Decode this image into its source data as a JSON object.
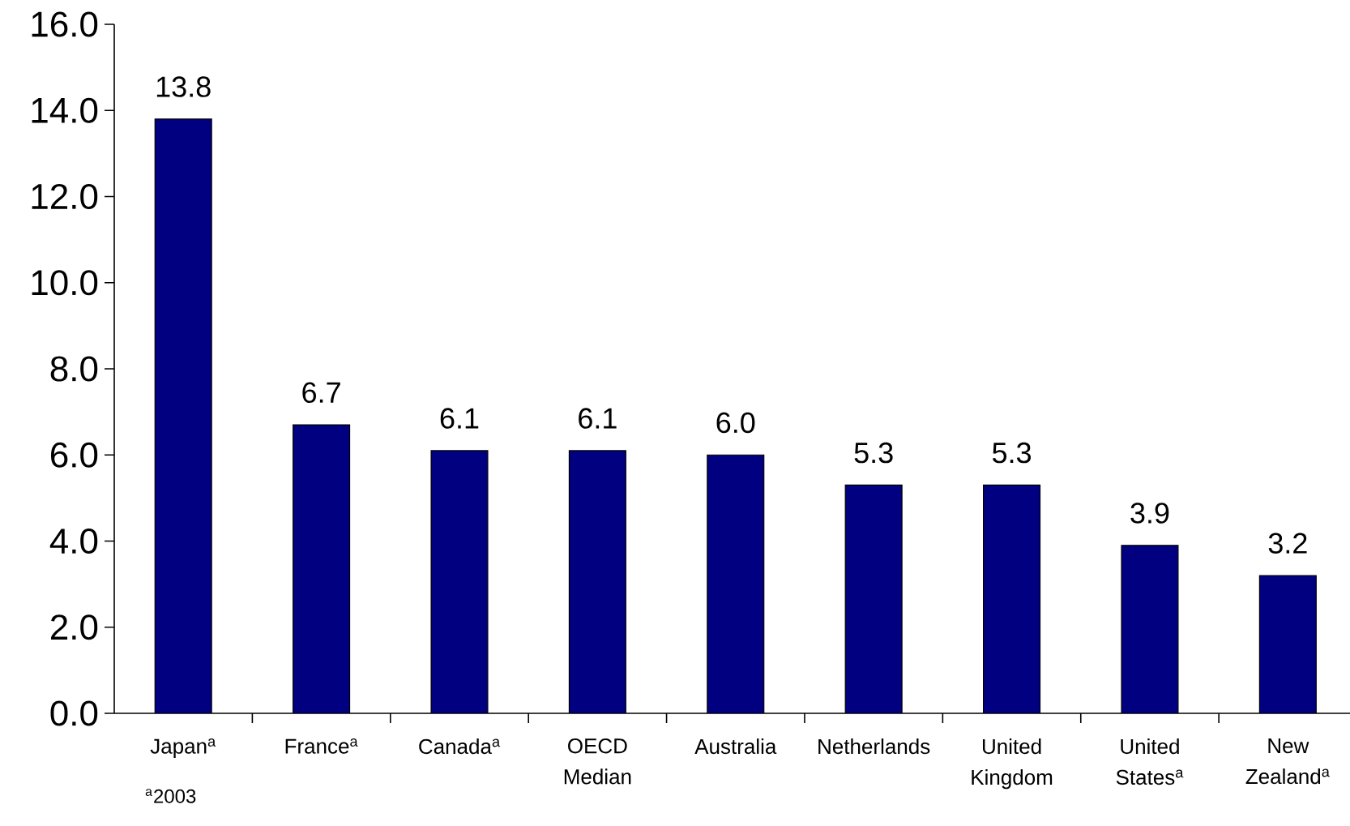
{
  "chart_data": {
    "type": "bar",
    "categories": [
      "Japan$^{a}$",
      "France$^{a}$",
      "Canada$^{a}$",
      "OECD Median",
      "Australia",
      "Netherlands",
      "United Kingdom",
      "United States$^{a}$",
      "New Zealand$^{a}$"
    ],
    "values": [
      13.8,
      6.7,
      6.1,
      6.1,
      6.0,
      5.3,
      5.3,
      3.9,
      3.2
    ],
    "color": "#000080",
    "value_labels": [
      "13.8",
      "6.7",
      "6.1",
      "6.1",
      "6.0",
      "5.3",
      "5.3",
      "3.9",
      "3.2"
    ],
    "ylim": [
      0,
      16
    ],
    "yticks": [
      {
        "value": 0,
        "label": "0.0"
      },
      {
        "value": 2,
        "label": "2.0"
      },
      {
        "value": 4,
        "label": "4.0"
      },
      {
        "value": 6,
        "label": "6.0"
      },
      {
        "value": 8,
        "label": "8.0"
      },
      {
        "value": 10,
        "label": "10.0"
      },
      {
        "value": 12,
        "label": "12.0"
      },
      {
        "value": 14,
        "label": "14.0"
      },
      {
        "value": 16,
        "label": "16.0"
      }
    ],
    "grid": false,
    "annotations": [
      "$^{a}$2003"
    ]
  }
}
